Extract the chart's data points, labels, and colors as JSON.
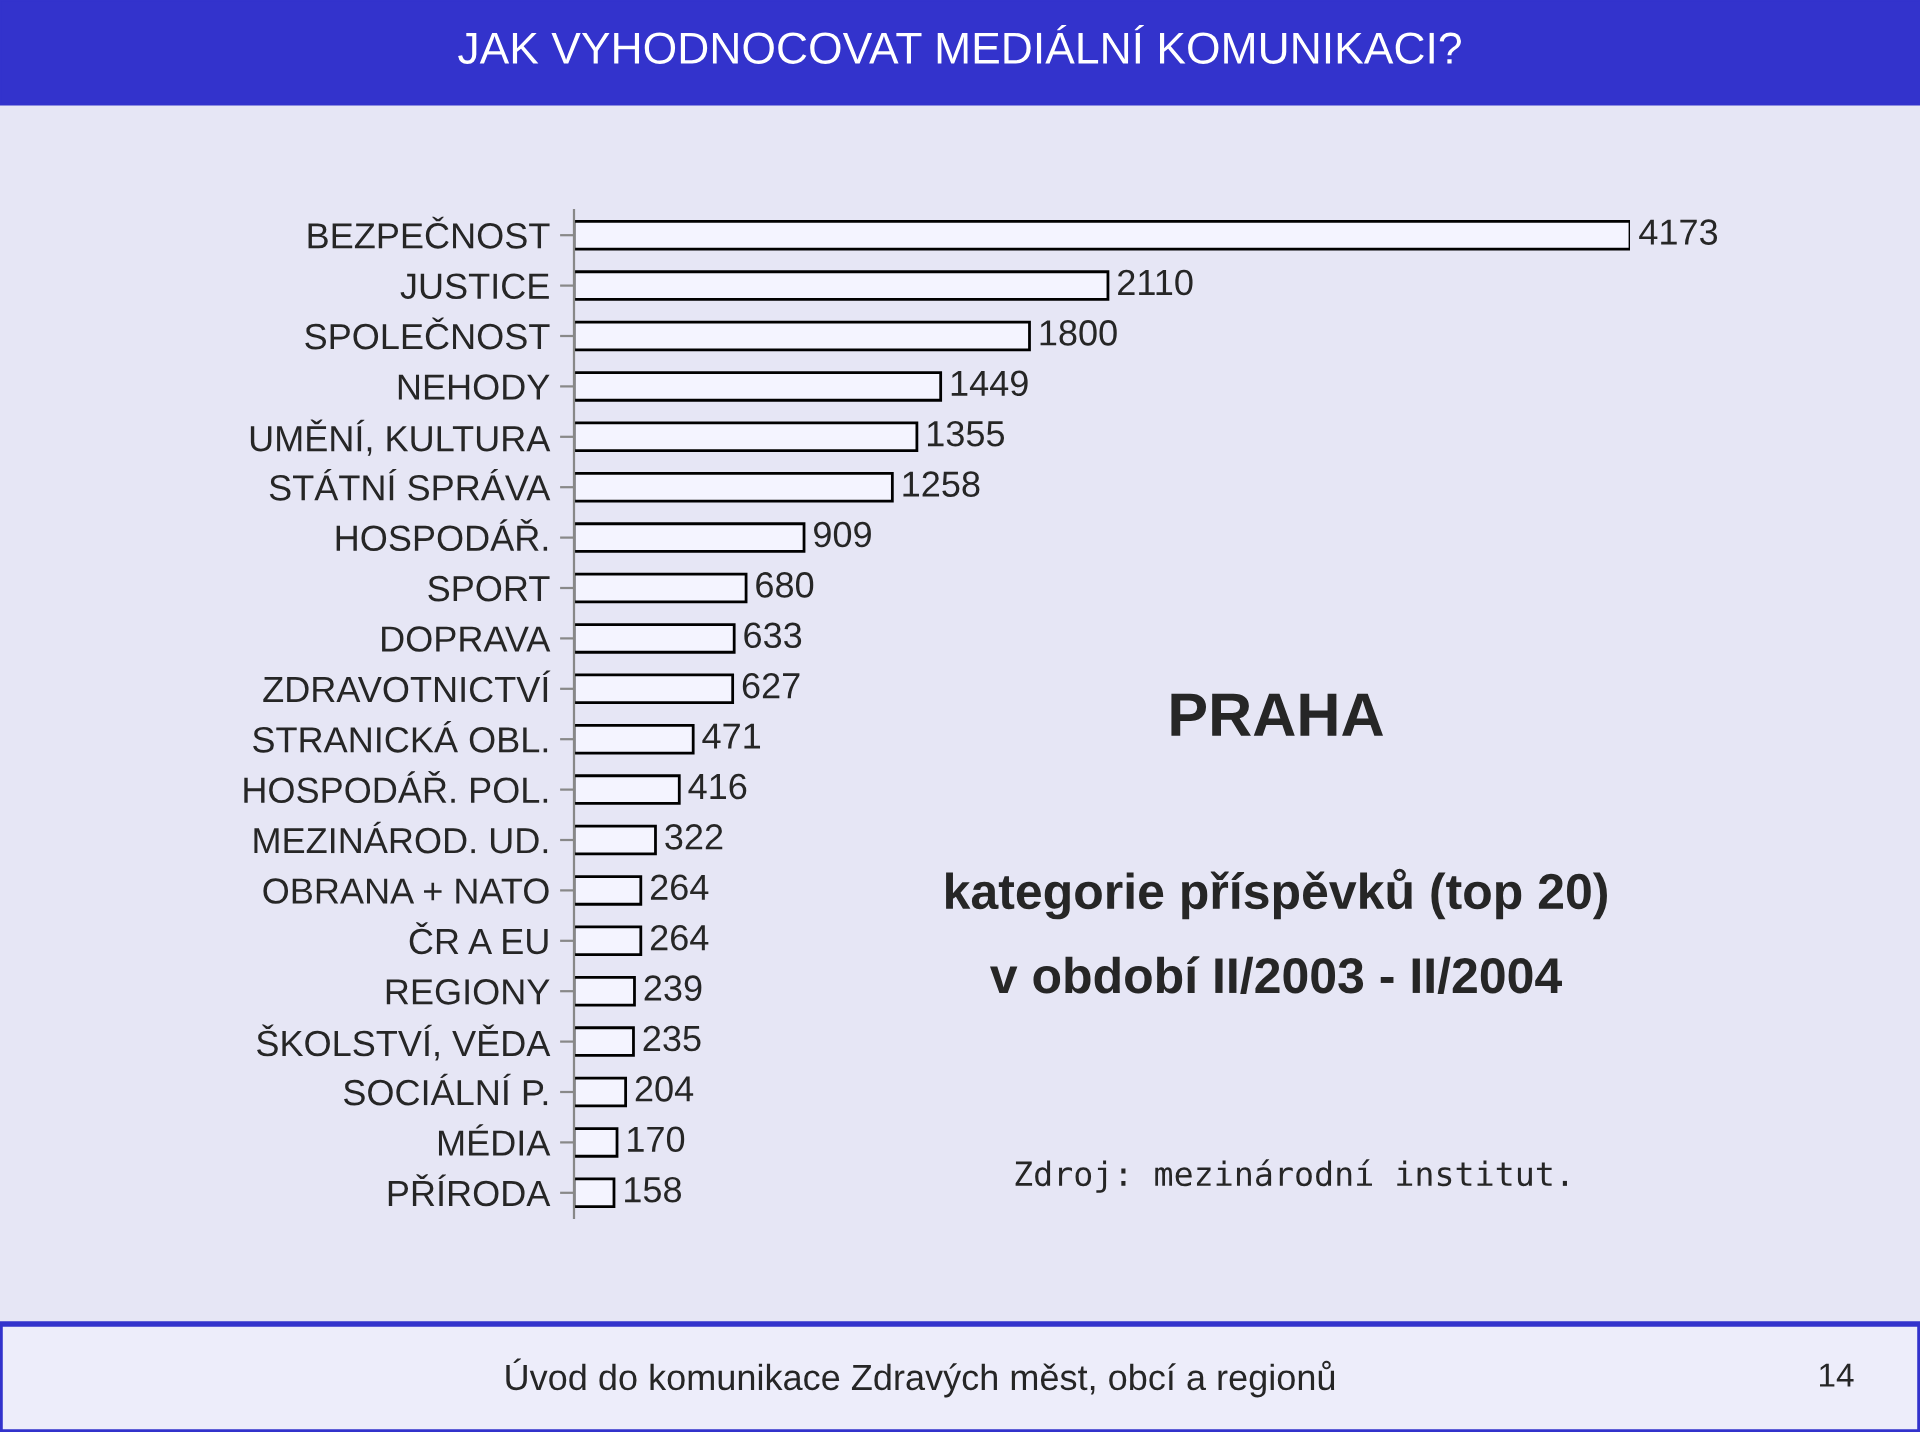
{
  "chart_data": {
    "type": "bar",
    "orientation": "horizontal",
    "title": "JAK VYHODNOCOVAT MEDIÁLNÍ KOMUNIKACI?",
    "subtitle": "PRAHA",
    "categories": [
      "BEZPEČNOST",
      "JUSTICE",
      "SPOLEČNOST",
      "NEHODY",
      "UMĚNÍ, KULTURA",
      "STÁTNÍ SPRÁVA",
      "HOSPODÁŘ.",
      "SPORT",
      "DOPRAVA",
      "ZDRAVOTNICTVÍ",
      "STRANICKÁ OBL.",
      "HOSPODÁŘ. POL.",
      "MEZINÁROD. UD.",
      "OBRANA + NATO",
      "ČR A EU",
      "REGIONY",
      "ŠKOLSTVÍ, VĚDA",
      "SOCIÁLNÍ P.",
      "MÉDIA",
      "PŘÍRODA"
    ],
    "values": [
      4173,
      2110,
      1800,
      1449,
      1355,
      1258,
      909,
      680,
      633,
      627,
      471,
      416,
      322,
      264,
      264,
      239,
      235,
      204,
      170,
      158
    ],
    "color": "#f4f4ff",
    "data_labels": true,
    "grid": false,
    "legend": false,
    "annotations": [
      "kategorie příspěvků (top 20)",
      "v období II/2003 - II/2004",
      "Zdroj: mezinárodní institut.",
      "Úvod do komunikace Zdravých měst, obcí a regionů",
      "14"
    ]
  }
}
